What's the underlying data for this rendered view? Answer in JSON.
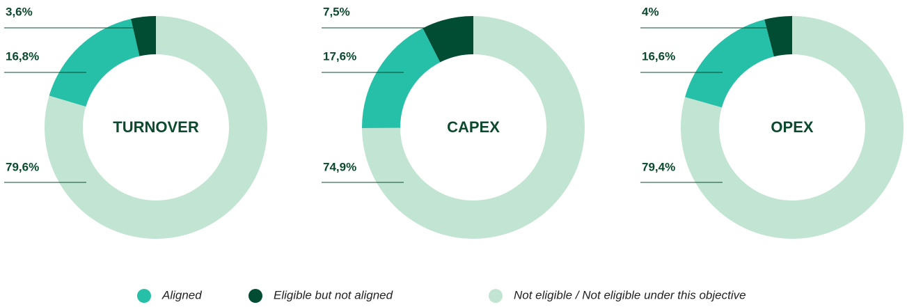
{
  "chart_data": [
    {
      "type": "pie",
      "title": "TURNOVER",
      "values": [
        16.8,
        3.6,
        79.6
      ],
      "value_labels": [
        "16,8%",
        "3,6%",
        "79,6%"
      ]
    },
    {
      "type": "pie",
      "title": "CAPEX",
      "values": [
        17.6,
        7.5,
        74.9
      ],
      "value_labels": [
        "17,6%",
        "7,5%",
        "74,9%"
      ]
    },
    {
      "type": "pie",
      "title": "OPEX",
      "values": [
        16.6,
        4,
        79.4
      ],
      "value_labels": [
        "16,6%",
        "4%",
        "79,4%"
      ]
    }
  ],
  "legend": [
    {
      "name": "Aligned",
      "color": "#26bfa7"
    },
    {
      "name": "Eligible but not aligned",
      "color": "#004d33"
    },
    {
      "name": "Not eligible / Not eligible under this objective",
      "color": "#c2e4d3"
    }
  ]
}
